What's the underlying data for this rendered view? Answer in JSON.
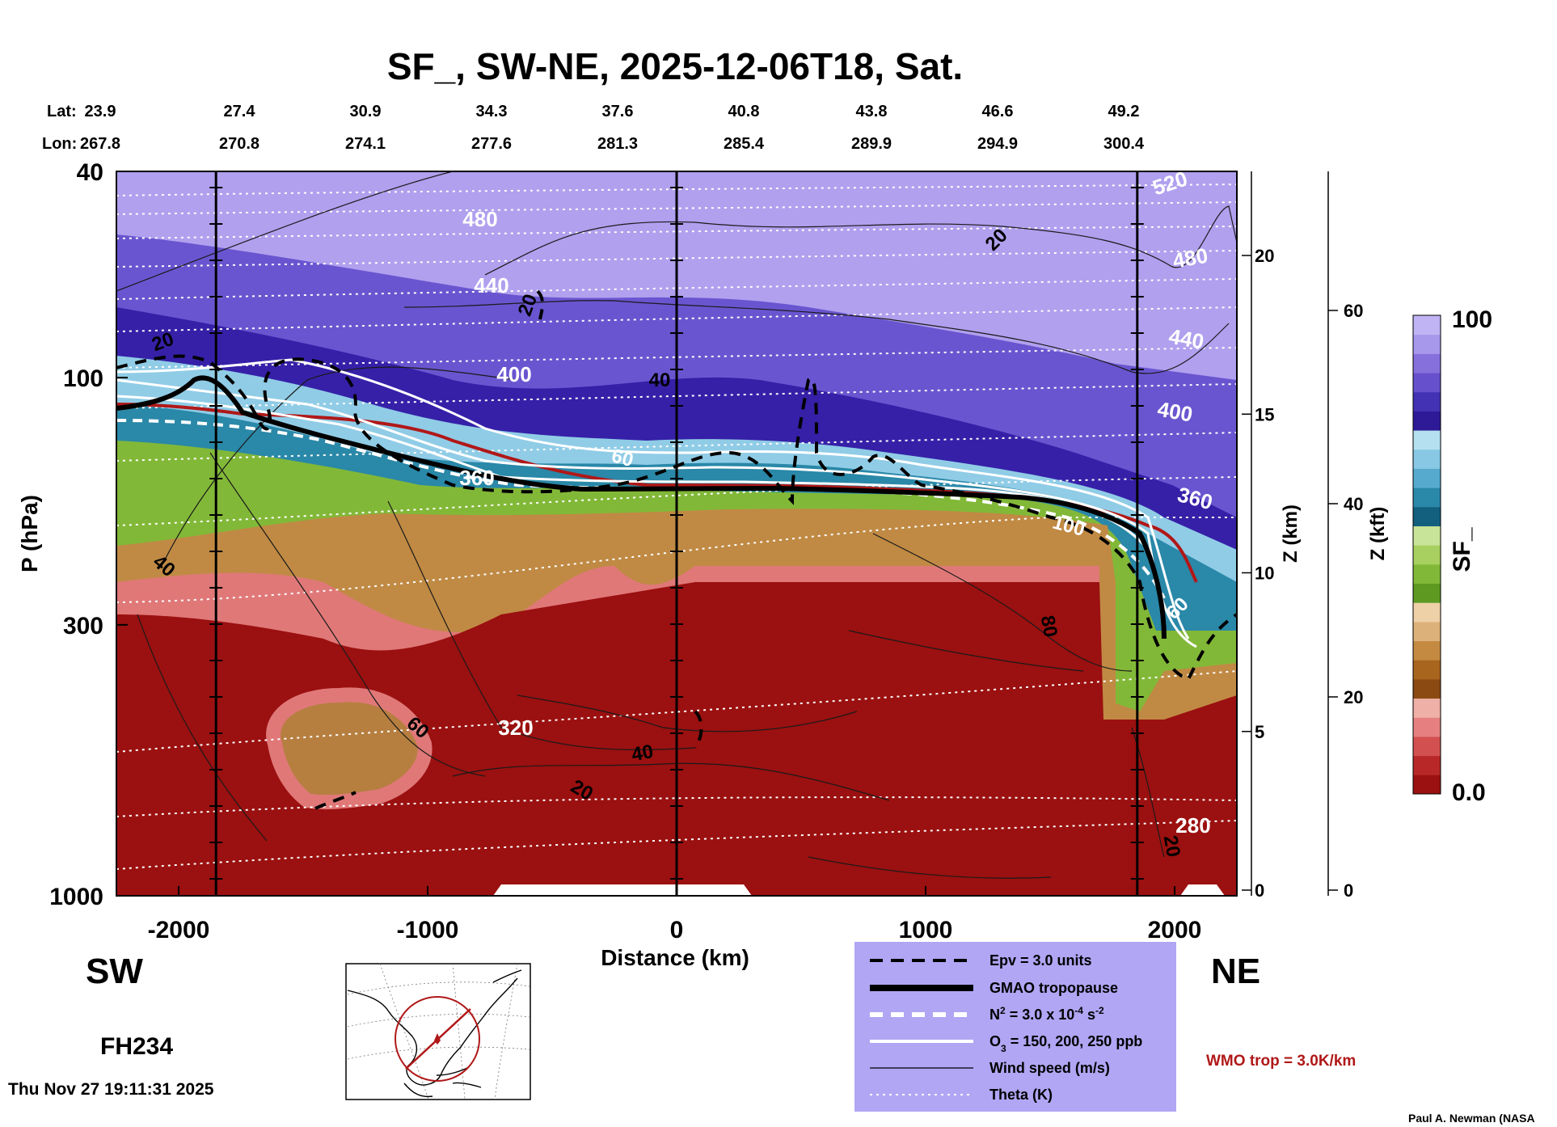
{
  "chart_data": {
    "type": "contour-cross-section",
    "title": "SF_, SW-NE, 2025-12-06T18, Sat.",
    "xlabel": "Distance (km)",
    "ylabel": "P (hPa)",
    "z_km_label": "Z (km)",
    "z_kft_label": "Z (kft)",
    "xlim": [
      -2250,
      2250
    ],
    "ylim_hpa": [
      1000,
      40
    ],
    "x_ticks": [
      {
        "value": -2000,
        "label": "-2000"
      },
      {
        "value": -1000,
        "label": "-1000"
      },
      {
        "value": 0,
        "label": "0"
      },
      {
        "value": 1000,
        "label": "1000"
      },
      {
        "value": 2000,
        "label": "2000"
      }
    ],
    "p_ticks": [
      {
        "value": 40,
        "label": "40"
      },
      {
        "value": 100,
        "label": "100"
      },
      {
        "value": 300,
        "label": "300"
      },
      {
        "value": 1000,
        "label": "1000"
      }
    ],
    "z_km_ticks": [
      {
        "value": 0,
        "label": "0"
      },
      {
        "value": 5,
        "label": "5"
      },
      {
        "value": 10,
        "label": "10"
      },
      {
        "value": 15,
        "label": "15"
      },
      {
        "value": 20,
        "label": "20"
      }
    ],
    "z_kft_ticks": [
      {
        "value": 0,
        "label": "0"
      },
      {
        "value": 20,
        "label": "20"
      },
      {
        "value": 40,
        "label": "40"
      },
      {
        "value": 60,
        "label": "60"
      }
    ],
    "lat_label": "Lat:",
    "lon_label": "Lon:",
    "lat_values": [
      "23.9",
      "27.4",
      "30.9",
      "34.3",
      "37.6",
      "40.8",
      "43.8",
      "46.6",
      "49.2"
    ],
    "lon_values": [
      "267.8",
      "270.8",
      "274.1",
      "277.6",
      "281.3",
      "285.4",
      "289.9",
      "294.9",
      "300.4"
    ],
    "vertical_markers_km": [
      -1850,
      0,
      1850
    ],
    "colorbar": {
      "label": "SF_",
      "min_label": "0.0",
      "max_label": "100",
      "colors": [
        "#9b1010",
        "#b82828",
        "#d35050",
        "#e68080",
        "#efb0a8",
        "#8a4a12",
        "#a8651e",
        "#c48a42",
        "#ddb27a",
        "#efd1a8",
        "#5e9a22",
        "#82b838",
        "#a8d060",
        "#c8e498",
        "#12607e",
        "#2a88a8",
        "#55aace",
        "#88c8e4",
        "#b4e0f0",
        "#2e1a96",
        "#4432b4",
        "#6650cc",
        "#8670dc",
        "#a898ec",
        "#c0b4f4"
      ]
    },
    "contour_labels": {
      "theta": [
        "480",
        "440",
        "400",
        "360",
        "320",
        "520",
        "480",
        "440",
        "400",
        "360",
        "280"
      ],
      "wind": [
        "20",
        "20",
        "40",
        "60",
        "60",
        "40",
        "20",
        "40",
        "20",
        "100",
        "80",
        "60",
        "20"
      ]
    },
    "legend": [
      {
        "style": "dashed-black",
        "label": "Epv = 3.0 units"
      },
      {
        "style": "thick-black",
        "label": "GMAO tropopause"
      },
      {
        "style": "dashed-white",
        "label": "N",
        "sup1": "2",
        "mid": " = 3.0 x 10",
        "sup2": "-4",
        "end": " s",
        "sup3": "-2"
      },
      {
        "style": "solid-white",
        "label": "O",
        "sub1": "3",
        "end": " = 150, 200, 250 ppb"
      },
      {
        "style": "thin-black",
        "label": "Wind speed (m/s)"
      },
      {
        "style": "dotted-white",
        "label": "Theta (K)"
      }
    ],
    "wmo_label": "WMO trop = 3.0K/km",
    "sw_label": "SW",
    "ne_label": "NE",
    "fh_label": "FH234",
    "timestamp": "Thu Nov 27 19:11:31 2025",
    "credit": "Paul A. Newman (NASA"
  }
}
